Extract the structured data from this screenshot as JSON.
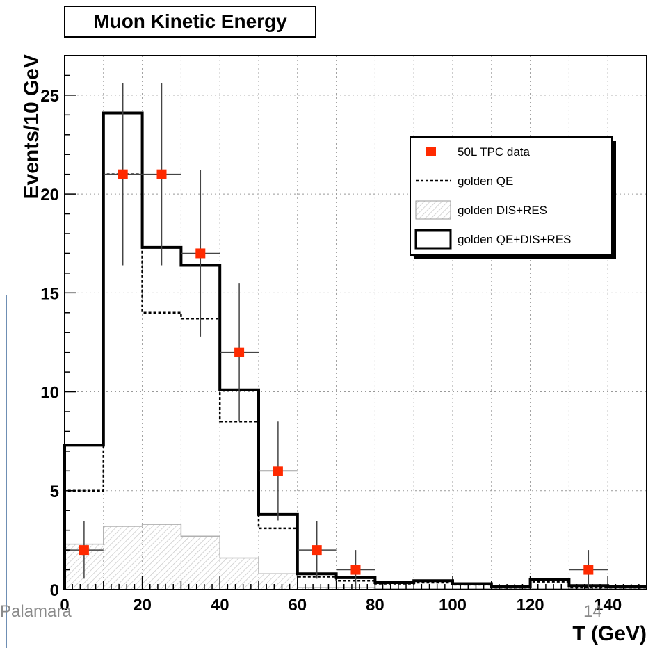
{
  "footer": {
    "author": "Palamara",
    "page": "14"
  },
  "chart_data": {
    "type": "histogram",
    "title": "Muon Kinetic Energy",
    "xlabel": "T (GeV)",
    "ylabel": "Events/10 GeV",
    "xlim": [
      0,
      150
    ],
    "ylim": [
      0,
      27
    ],
    "grid": true,
    "xticks": [
      0,
      20,
      40,
      60,
      80,
      100,
      120,
      140
    ],
    "yticks": [
      0,
      5,
      10,
      15,
      20,
      25
    ],
    "bin_edges": [
      0,
      10,
      20,
      30,
      40,
      50,
      60,
      70,
      80,
      90,
      100,
      110,
      120,
      130,
      140,
      150
    ],
    "legend_position": "top-right",
    "legend": [
      "50L TPC data",
      "golden QE",
      "golden DIS+RES",
      "golden QE+DIS+RES"
    ],
    "series": [
      {
        "name": "golden QE+DIS+RES",
        "style": "thick-solid",
        "color": "#000000",
        "values": [
          7.3,
          24.1,
          17.3,
          16.4,
          10.1,
          3.8,
          0.8,
          0.6,
          0.35,
          0.45,
          0.3,
          0.15,
          0.5,
          0.2,
          0.15
        ]
      },
      {
        "name": "golden QE",
        "style": "dotted",
        "color": "#000000",
        "values": [
          5.0,
          21.0,
          14.0,
          13.7,
          8.5,
          3.1,
          0.65,
          0.45,
          0.3,
          0.35,
          0.25,
          0.1,
          0.4,
          0.1,
          0.1
        ]
      },
      {
        "name": "golden DIS+RES",
        "style": "hatched",
        "color": "#bbbbbb",
        "values": [
          2.3,
          3.2,
          3.3,
          2.7,
          1.6,
          0.8,
          0.1,
          0.1,
          0.05,
          0.05,
          0.05,
          0.05,
          0.05,
          0.05,
          0.05
        ]
      }
    ],
    "data_points": {
      "name": "50L TPC data",
      "color": "#ff2a00",
      "x": [
        5,
        15,
        25,
        35,
        45,
        55,
        65,
        75,
        135
      ],
      "y": [
        2,
        21,
        21,
        17,
        12,
        6,
        2,
        1,
        1
      ],
      "yerr": [
        1.45,
        4.6,
        4.6,
        4.2,
        3.5,
        2.5,
        1.45,
        1.0,
        1.0
      ],
      "xerr": 5
    }
  }
}
